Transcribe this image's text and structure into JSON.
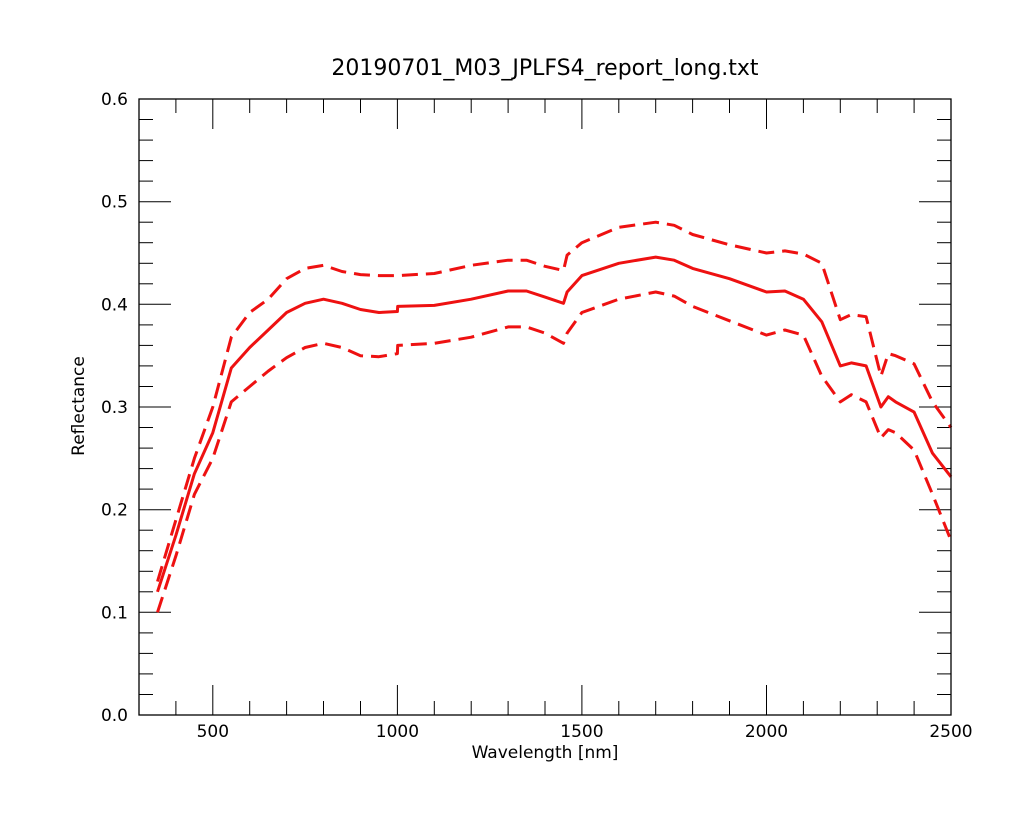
{
  "chart_data": {
    "type": "line",
    "title": "20190701_M03_JPLFS4_report_long.txt",
    "xlabel": "Wavelength [nm]",
    "ylabel": "Reflectance",
    "xlim": [
      300,
      2500
    ],
    "ylim": [
      0.0,
      0.6
    ],
    "x_ticks": [
      500,
      1000,
      1500,
      2000,
      2500
    ],
    "x_tick_labels": [
      "500",
      "1000",
      "1500",
      "2000",
      "2500"
    ],
    "y_ticks": [
      0.0,
      0.1,
      0.2,
      0.3,
      0.4,
      0.5,
      0.6
    ],
    "y_tick_labels": [
      "0.0",
      "0.1",
      "0.2",
      "0.3",
      "0.4",
      "0.5",
      "0.6"
    ],
    "grid": false,
    "line_color": "#ee1111",
    "series": [
      {
        "style": "solid",
        "x": [
          350,
          400,
          450,
          500,
          550,
          600,
          650,
          700,
          750,
          800,
          850,
          900,
          950,
          1000,
          1001,
          1100,
          1200,
          1300,
          1350,
          1400,
          1450,
          1460,
          1500,
          1600,
          1700,
          1750,
          1800,
          1900,
          2000,
          2050,
          2100,
          2150,
          2200,
          2230,
          2270,
          2310,
          2330,
          2350,
          2400,
          2450,
          2500
        ],
        "y": [
          0.12,
          0.175,
          0.235,
          0.275,
          0.338,
          0.358,
          0.375,
          0.392,
          0.401,
          0.405,
          0.401,
          0.395,
          0.392,
          0.393,
          0.398,
          0.399,
          0.405,
          0.413,
          0.413,
          0.407,
          0.401,
          0.412,
          0.428,
          0.44,
          0.446,
          0.443,
          0.435,
          0.425,
          0.412,
          0.413,
          0.405,
          0.383,
          0.34,
          0.343,
          0.34,
          0.3,
          0.31,
          0.305,
          0.295,
          0.255,
          0.232
        ]
      },
      {
        "style": "dashed",
        "x": [
          350,
          400,
          450,
          500,
          550,
          600,
          650,
          700,
          750,
          800,
          850,
          900,
          950,
          1000,
          1100,
          1200,
          1300,
          1350,
          1400,
          1450,
          1460,
          1500,
          1600,
          1700,
          1750,
          1800,
          1900,
          2000,
          2050,
          2100,
          2150,
          2200,
          2230,
          2270,
          2310,
          2330,
          2350,
          2400,
          2450,
          2500
        ],
        "y": [
          0.13,
          0.19,
          0.25,
          0.3,
          0.368,
          0.392,
          0.405,
          0.425,
          0.435,
          0.438,
          0.432,
          0.429,
          0.428,
          0.428,
          0.43,
          0.438,
          0.443,
          0.443,
          0.437,
          0.433,
          0.448,
          0.46,
          0.475,
          0.48,
          0.477,
          0.468,
          0.458,
          0.45,
          0.452,
          0.449,
          0.44,
          0.385,
          0.39,
          0.388,
          0.33,
          0.352,
          0.35,
          0.342,
          0.305,
          0.28
        ]
      },
      {
        "style": "dashed",
        "x": [
          350,
          400,
          450,
          500,
          550,
          600,
          650,
          700,
          750,
          800,
          850,
          900,
          950,
          1000,
          1001,
          1100,
          1200,
          1300,
          1350,
          1400,
          1450,
          1460,
          1500,
          1600,
          1700,
          1750,
          1800,
          1900,
          2000,
          2050,
          2100,
          2150,
          2200,
          2230,
          2270,
          2310,
          2330,
          2350,
          2400,
          2450,
          2500
        ],
        "y": [
          0.1,
          0.155,
          0.215,
          0.25,
          0.305,
          0.32,
          0.335,
          0.348,
          0.358,
          0.362,
          0.358,
          0.35,
          0.349,
          0.352,
          0.36,
          0.362,
          0.368,
          0.378,
          0.378,
          0.372,
          0.362,
          0.372,
          0.392,
          0.405,
          0.412,
          0.408,
          0.398,
          0.384,
          0.37,
          0.375,
          0.37,
          0.33,
          0.305,
          0.312,
          0.305,
          0.27,
          0.278,
          0.275,
          0.258,
          0.215,
          0.17
        ]
      }
    ]
  }
}
